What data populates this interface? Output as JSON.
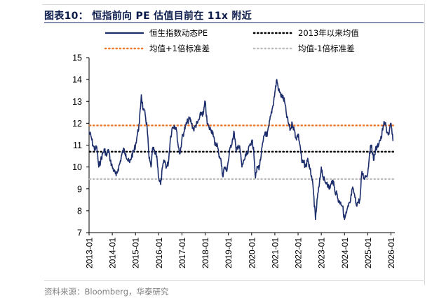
{
  "figure": {
    "title": "图表10：  恒指前向 PE 估值目前在 11x 附近",
    "source": "资料来源：Bloomberg，华泰研究"
  },
  "colors": {
    "series": "#1c2d6b",
    "mean": "#000000",
    "plus1": "#ed7d31",
    "minus1": "#bfbfbf",
    "title": "#0a1a4a",
    "source": "#808080"
  },
  "chart_data": {
    "type": "line",
    "title": "",
    "xlabel": "",
    "ylabel": "",
    "ylim": [
      7,
      15
    ],
    "yticks": [
      "15",
      "14",
      "13",
      "12",
      "11",
      "10",
      "9",
      "8",
      "7"
    ],
    "xlim": [
      "2013-01",
      "2026-03"
    ],
    "xticks": [
      "2013-01",
      "2014-01",
      "2015-01",
      "2016-01",
      "2017-01",
      "2018-01",
      "2019-01",
      "2020-01",
      "2021-01",
      "2022-01",
      "2023-01",
      "2024-01",
      "2025-01",
      "2026-01"
    ],
    "grid": false,
    "legend_position": "top",
    "legend": [
      {
        "key": "pe",
        "label": "恒生指数动态PE",
        "style": "solid"
      },
      {
        "key": "mean",
        "label": "2013年以来均值",
        "style": "dotted"
      },
      {
        "key": "plus1",
        "label": "均值+1倍标准差",
        "style": "dotted"
      },
      {
        "key": "minus1",
        "label": "均值-1倍标准差",
        "style": "dotted"
      }
    ],
    "reference_lines": {
      "mean": 10.7,
      "plus1": 11.9,
      "minus1": 9.45
    },
    "series": [
      {
        "name": "恒生指数动态PE",
        "points": [
          [
            "2013-01",
            11.6
          ],
          [
            "2013-02",
            11.4
          ],
          [
            "2013-03",
            11.0
          ],
          [
            "2013-04",
            10.8
          ],
          [
            "2013-05",
            10.9
          ],
          [
            "2013-06",
            10.0
          ],
          [
            "2013-07",
            10.3
          ],
          [
            "2013-08",
            10.6
          ],
          [
            "2013-09",
            10.8
          ],
          [
            "2013-10",
            10.5
          ],
          [
            "2013-11",
            10.8
          ],
          [
            "2013-12",
            10.3
          ],
          [
            "2014-01",
            10.0
          ],
          [
            "2014-02",
            9.8
          ],
          [
            "2014-03",
            9.6
          ],
          [
            "2014-04",
            9.9
          ],
          [
            "2014-05",
            10.2
          ],
          [
            "2014-06",
            10.6
          ],
          [
            "2014-07",
            10.8
          ],
          [
            "2014-08",
            10.6
          ],
          [
            "2014-09",
            10.3
          ],
          [
            "2014-10",
            10.2
          ],
          [
            "2014-11",
            10.5
          ],
          [
            "2014-12",
            10.7
          ],
          [
            "2015-01",
            11.0
          ],
          [
            "2015-02",
            11.5
          ],
          [
            "2015-03",
            12.0
          ],
          [
            "2015-04",
            13.3
          ],
          [
            "2015-05",
            12.6
          ],
          [
            "2015-06",
            12.4
          ],
          [
            "2015-07",
            11.8
          ],
          [
            "2015-08",
            10.4
          ],
          [
            "2015-09",
            10.0
          ],
          [
            "2015-10",
            10.9
          ],
          [
            "2015-11",
            10.6
          ],
          [
            "2015-12",
            10.5
          ],
          [
            "2016-01",
            9.5
          ],
          [
            "2016-02",
            9.2
          ],
          [
            "2016-03",
            10.0
          ],
          [
            "2016-04",
            10.3
          ],
          [
            "2016-05",
            10.0
          ],
          [
            "2016-06",
            10.2
          ],
          [
            "2016-07",
            11.3
          ],
          [
            "2016-08",
            11.8
          ],
          [
            "2016-09",
            11.9
          ],
          [
            "2016-10",
            11.8
          ],
          [
            "2016-11",
            11.0
          ],
          [
            "2016-12",
            10.6
          ],
          [
            "2017-01",
            11.3
          ],
          [
            "2017-02",
            11.6
          ],
          [
            "2017-03",
            11.9
          ],
          [
            "2017-04",
            12.1
          ],
          [
            "2017-05",
            12.2
          ],
          [
            "2017-06",
            12.0
          ],
          [
            "2017-07",
            11.7
          ],
          [
            "2017-08",
            11.9
          ],
          [
            "2017-09",
            12.0
          ],
          [
            "2017-10",
            12.2
          ],
          [
            "2017-11",
            12.5
          ],
          [
            "2017-12",
            12.4
          ],
          [
            "2018-01",
            13.0
          ],
          [
            "2018-02",
            12.0
          ],
          [
            "2018-03",
            11.8
          ],
          [
            "2018-04",
            11.7
          ],
          [
            "2018-05",
            11.6
          ],
          [
            "2018-06",
            11.0
          ],
          [
            "2018-07",
            11.1
          ],
          [
            "2018-08",
            10.6
          ],
          [
            "2018-09",
            10.4
          ],
          [
            "2018-10",
            9.6
          ],
          [
            "2018-11",
            10.0
          ],
          [
            "2018-12",
            9.8
          ],
          [
            "2019-01",
            10.3
          ],
          [
            "2019-02",
            10.9
          ],
          [
            "2019-03",
            11.2
          ],
          [
            "2019-04",
            11.6
          ],
          [
            "2019-05",
            10.7
          ],
          [
            "2019-06",
            11.0
          ],
          [
            "2019-07",
            10.8
          ],
          [
            "2019-08",
            10.0
          ],
          [
            "2019-09",
            10.3
          ],
          [
            "2019-10",
            10.5
          ],
          [
            "2019-11",
            10.6
          ],
          [
            "2019-12",
            11.0
          ],
          [
            "2020-01",
            11.2
          ],
          [
            "2020-02",
            10.9
          ],
          [
            "2020-03",
            9.5
          ],
          [
            "2020-04",
            10.0
          ],
          [
            "2020-05",
            10.0
          ],
          [
            "2020-06",
            10.6
          ],
          [
            "2020-07",
            11.2
          ],
          [
            "2020-08",
            11.6
          ],
          [
            "2020-09",
            11.4
          ],
          [
            "2020-10",
            11.9
          ],
          [
            "2020-11",
            12.4
          ],
          [
            "2020-12",
            12.8
          ],
          [
            "2021-01",
            13.4
          ],
          [
            "2021-02",
            14.0
          ],
          [
            "2021-03",
            13.5
          ],
          [
            "2021-04",
            13.3
          ],
          [
            "2021-05",
            13.2
          ],
          [
            "2021-06",
            13.0
          ],
          [
            "2021-07",
            12.4
          ],
          [
            "2021-08",
            12.0
          ],
          [
            "2021-09",
            11.7
          ],
          [
            "2021-10",
            12.0
          ],
          [
            "2021-11",
            11.7
          ],
          [
            "2021-12",
            11.3
          ],
          [
            "2022-01",
            11.5
          ],
          [
            "2022-02",
            11.0
          ],
          [
            "2022-03",
            10.2
          ],
          [
            "2022-04",
            10.2
          ],
          [
            "2022-05",
            10.0
          ],
          [
            "2022-06",
            10.4
          ],
          [
            "2022-07",
            9.9
          ],
          [
            "2022-08",
            9.6
          ],
          [
            "2022-09",
            8.8
          ],
          [
            "2022-10",
            7.6
          ],
          [
            "2022-11",
            8.6
          ],
          [
            "2022-12",
            9.2
          ],
          [
            "2023-01",
            10.0
          ],
          [
            "2023-02",
            9.5
          ],
          [
            "2023-03",
            9.3
          ],
          [
            "2023-04",
            9.3
          ],
          [
            "2023-05",
            9.0
          ],
          [
            "2023-06",
            9.2
          ],
          [
            "2023-07",
            9.4
          ],
          [
            "2023-08",
            8.9
          ],
          [
            "2023-09",
            8.8
          ],
          [
            "2023-10",
            8.4
          ],
          [
            "2023-11",
            8.4
          ],
          [
            "2023-12",
            8.2
          ],
          [
            "2024-01",
            7.6
          ],
          [
            "2024-02",
            7.9
          ],
          [
            "2024-03",
            8.2
          ],
          [
            "2024-04",
            8.4
          ],
          [
            "2024-05",
            9.0
          ],
          [
            "2024-06",
            8.8
          ],
          [
            "2024-07",
            8.3
          ],
          [
            "2024-08",
            8.4
          ],
          [
            "2024-09",
            8.5
          ],
          [
            "2024-10",
            9.8
          ],
          [
            "2024-11",
            9.5
          ],
          [
            "2024-12",
            9.6
          ],
          [
            "2025-01",
            9.7
          ],
          [
            "2025-02",
            10.7
          ],
          [
            "2025-03",
            11.0
          ],
          [
            "2025-04",
            10.3
          ],
          [
            "2025-05",
            10.8
          ],
          [
            "2025-06",
            10.9
          ],
          [
            "2025-07",
            11.2
          ],
          [
            "2025-08",
            11.3
          ],
          [
            "2025-09",
            11.9
          ],
          [
            "2025-10",
            12.0
          ],
          [
            "2025-11",
            11.6
          ],
          [
            "2025-12",
            11.5
          ],
          [
            "2026-01",
            12.0
          ],
          [
            "2026-02",
            11.2
          ]
        ]
      }
    ]
  }
}
